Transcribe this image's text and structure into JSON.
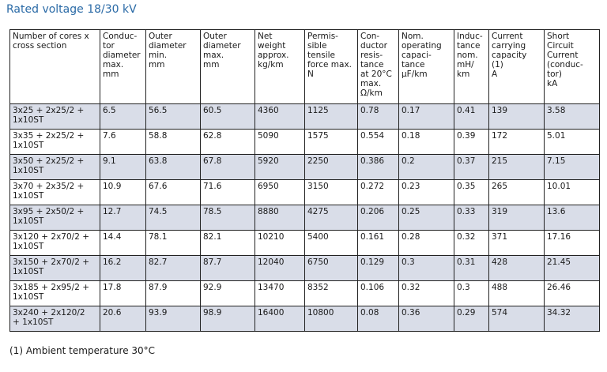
{
  "title": "Rated voltage 18/30 kV",
  "table": {
    "headers": [
      "Number of cores x\ncross section",
      "Conduc-\ntor\ndiameter\nmax.\nmm",
      "Outer\ndiameter\nmin.\nmm",
      "Outer\ndiameter\nmax.\nmm",
      "Net\nweight\napprox.\nkg/km",
      "Permis-\nsible\ntensile\nforce max.\nN",
      "Con-\nductor\nresis-\ntance\nat 20°C\nmax.\nΩ/km",
      "Nom.\noperating\ncapaci-\ntance\nµF/km",
      "Induc-\ntance\nnom.\nmH/\nkm",
      "Current\ncarrying\ncapacity\n(1)\nA",
      "Short\nCircuit\nCurrent\n(conduc-\ntor)\nkA"
    ],
    "rows": [
      [
        "3x25 + 2x25/2 +\n1x10ST",
        "6.5",
        "56.5",
        "60.5",
        "4360",
        "1125",
        "0.78",
        "0.17",
        "0.41",
        "139",
        "3.58"
      ],
      [
        "3x35 + 2x25/2 +\n1x10ST",
        "7.6",
        "58.8",
        "62.8",
        "5090",
        "1575",
        "0.554",
        "0.18",
        "0.39",
        "172",
        "5.01"
      ],
      [
        "3x50 + 2x25/2 +\n1x10ST",
        "9.1",
        "63.8",
        "67.8",
        "5920",
        "2250",
        "0.386",
        "0.2",
        "0.37",
        "215",
        "7.15"
      ],
      [
        "3x70 + 2x35/2 +\n1x10ST",
        "10.9",
        "67.6",
        "71.6",
        "6950",
        "3150",
        "0.272",
        "0.23",
        "0.35",
        "265",
        "10.01"
      ],
      [
        "3x95 + 2x50/2 +\n1x10ST",
        "12.7",
        "74.5",
        "78.5",
        "8880",
        "4275",
        "0.206",
        "0.25",
        "0.33",
        "319",
        "13.6"
      ],
      [
        "3x120 + 2x70/2 +\n1x10ST",
        "14.4",
        "78.1",
        "82.1",
        "10210",
        "5400",
        "0.161",
        "0.28",
        "0.32",
        "371",
        "17.16"
      ],
      [
        "3x150 + 2x70/2 +\n1x10ST",
        "16.2",
        "82.7",
        "87.7",
        "12040",
        "6750",
        "0.129",
        "0.3",
        "0.31",
        "428",
        "21.45"
      ],
      [
        "3x185 + 2x95/2 +\n1x10ST",
        "17.8",
        "87.9",
        "92.9",
        "13470",
        "8352",
        "0.106",
        "0.32",
        "0.3",
        "488",
        "26.46"
      ],
      [
        "3x240 + 2x120/2\n+ 1x10ST",
        "20.6",
        "93.9",
        "98.9",
        "16400",
        "10800",
        "0.08",
        "0.36",
        "0.29",
        "574",
        "34.32"
      ]
    ]
  },
  "footnote": "(1) Ambient temperature 30°C",
  "colors": {
    "title": "#2a6aa6",
    "row_shade": "#d9dde8",
    "border": "#222222"
  }
}
